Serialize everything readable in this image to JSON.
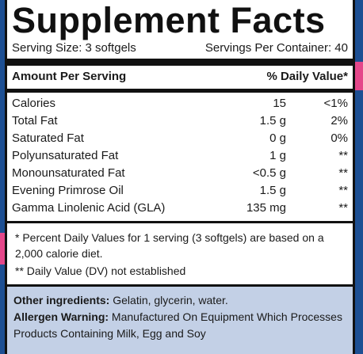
{
  "title": "Supplement Facts",
  "serving_size": "Serving Size: 3 softgels",
  "servings_per_container": "Servings Per Container: 40",
  "header": {
    "amount": "Amount Per Serving",
    "daily_value": "% Daily Value*"
  },
  "nutrients": [
    {
      "name": "Calories",
      "amount": "15",
      "dv": "<1%"
    },
    {
      "name": "Total Fat",
      "amount": "1.5 g",
      "dv": "2%"
    },
    {
      "name": "Saturated Fat",
      "amount": "0 g",
      "dv": "0%"
    },
    {
      "name": "Polyunsaturated Fat",
      "amount": "1 g",
      "dv": "**"
    },
    {
      "name": "Monounsaturated Fat",
      "amount": "<0.5 g",
      "dv": "**"
    },
    {
      "name": "Evening Primrose Oil",
      "amount": "1.5 g",
      "dv": "**"
    },
    {
      "name": "Gamma Linolenic Acid (GLA)",
      "amount": "135 mg",
      "dv": "**"
    }
  ],
  "footnotes": {
    "daily_values": "* Percent Daily Values for 1 serving (3 softgels) are based on a 2,000 calorie diet.",
    "not_established": "** Daily Value (DV) not established"
  },
  "other_ingredients": {
    "label": "Other ingredients:",
    "text": " Gelatin, glycerin, water."
  },
  "allergen": {
    "label": "Allergen Warning:",
    "text": " Manufactured On Equipment Which Processes Products Containing Milk, Egg and Soy"
  },
  "colors": {
    "background": "#1d4f93",
    "accent": "#e4478a",
    "ingredients_panel": "#c3d0e6"
  }
}
